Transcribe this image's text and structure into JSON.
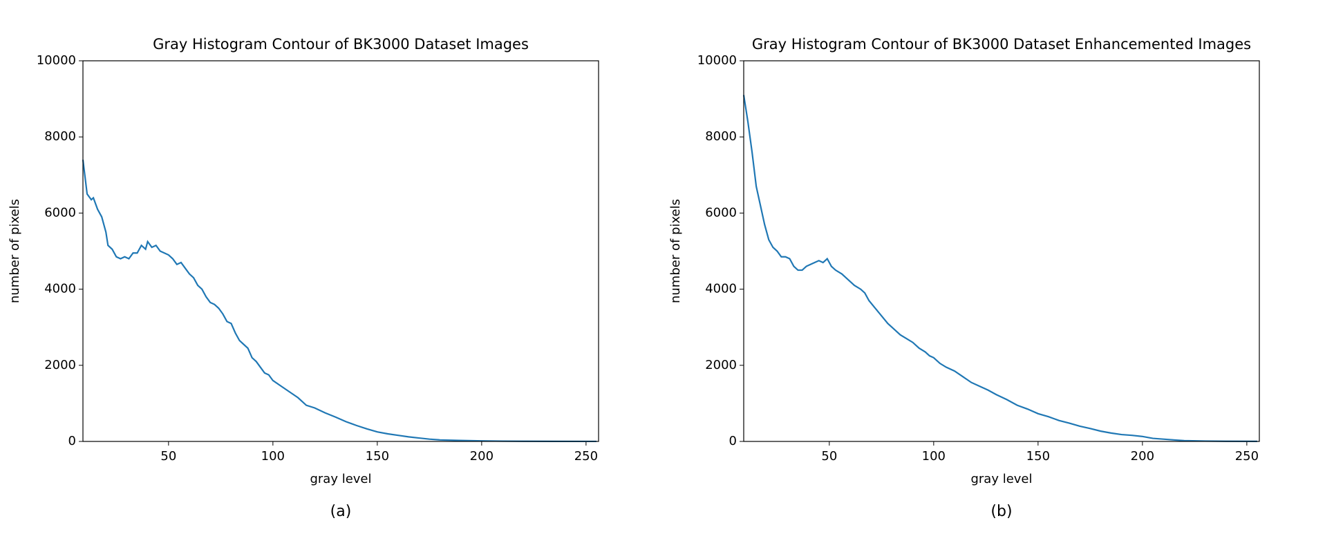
{
  "chart_data": [
    {
      "type": "line",
      "title": "Gray Histogram Contour of BK3000 Dataset Images",
      "xlabel": "gray level",
      "ylabel": "number of pixels",
      "caption": "(a)",
      "color": "#1f77b4",
      "xlim": [
        9,
        256
      ],
      "ylim": [
        0,
        10000
      ],
      "xticks": [
        50,
        100,
        150,
        200,
        250
      ],
      "yticks": [
        0,
        2000,
        4000,
        6000,
        8000,
        10000
      ],
      "x": [
        9,
        11,
        13,
        14,
        16,
        18,
        20,
        21,
        23,
        25,
        27,
        29,
        31,
        33,
        35,
        37,
        39,
        40,
        42,
        44,
        46,
        48,
        50,
        52,
        54,
        56,
        58,
        60,
        62,
        64,
        66,
        68,
        70,
        72,
        74,
        76,
        78,
        80,
        82,
        84,
        86,
        88,
        90,
        92,
        94,
        96,
        98,
        100,
        104,
        108,
        112,
        116,
        120,
        125,
        130,
        135,
        140,
        145,
        150,
        155,
        160,
        165,
        170,
        175,
        180,
        190,
        200,
        210,
        220,
        235,
        255
      ],
      "values": [
        7400,
        6500,
        6350,
        6400,
        6100,
        5900,
        5500,
        5150,
        5050,
        4850,
        4800,
        4850,
        4800,
        4950,
        4950,
        5150,
        5050,
        5250,
        5100,
        5150,
        5000,
        4950,
        4900,
        4800,
        4650,
        4700,
        4550,
        4400,
        4300,
        4100,
        4000,
        3800,
        3650,
        3600,
        3500,
        3350,
        3150,
        3100,
        2850,
        2650,
        2550,
        2450,
        2200,
        2100,
        1950,
        1800,
        1750,
        1600,
        1450,
        1300,
        1150,
        950,
        880,
        750,
        640,
        520,
        420,
        330,
        250,
        200,
        160,
        120,
        90,
        60,
        40,
        25,
        15,
        8,
        5,
        2,
        1
      ]
    },
    {
      "type": "line",
      "title": "Gray Histogram Contour of BK3000 Dataset Enhancemented Images",
      "xlabel": "gray level",
      "ylabel": "number of pixels",
      "caption": "(b)",
      "color": "#1f77b4",
      "xlim": [
        9,
        256
      ],
      "ylim": [
        0,
        10000
      ],
      "xticks": [
        50,
        100,
        150,
        200,
        250
      ],
      "yticks": [
        0,
        2000,
        4000,
        6000,
        8000,
        10000
      ],
      "x": [
        9,
        11,
        13,
        15,
        17,
        19,
        21,
        23,
        25,
        27,
        29,
        31,
        33,
        35,
        37,
        39,
        41,
        43,
        45,
        47,
        49,
        51,
        53,
        56,
        58,
        60,
        62,
        65,
        67,
        69,
        72,
        75,
        78,
        81,
        84,
        87,
        90,
        93,
        96,
        98,
        100,
        103,
        106,
        110,
        114,
        118,
        122,
        126,
        130,
        135,
        140,
        145,
        150,
        155,
        160,
        165,
        170,
        175,
        180,
        185,
        190,
        195,
        200,
        205,
        210,
        215,
        220,
        230,
        240,
        255
      ],
      "values": [
        9100,
        8400,
        7600,
        6700,
        6200,
        5700,
        5300,
        5100,
        5000,
        4850,
        4850,
        4800,
        4600,
        4500,
        4500,
        4600,
        4650,
        4700,
        4750,
        4700,
        4800,
        4600,
        4500,
        4400,
        4300,
        4200,
        4100,
        4000,
        3900,
        3700,
        3500,
        3300,
        3100,
        2950,
        2800,
        2700,
        2600,
        2450,
        2350,
        2250,
        2200,
        2050,
        1950,
        1850,
        1700,
        1550,
        1450,
        1350,
        1230,
        1100,
        950,
        850,
        730,
        650,
        550,
        480,
        400,
        340,
        270,
        220,
        180,
        160,
        130,
        80,
        60,
        40,
        20,
        10,
        5,
        2
      ]
    }
  ]
}
